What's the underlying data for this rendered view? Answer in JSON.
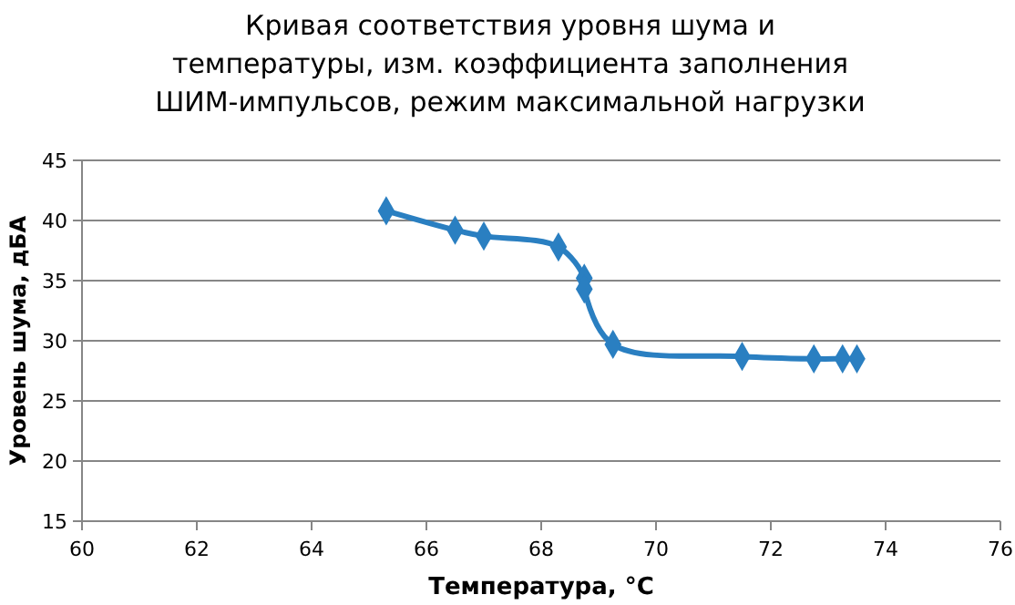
{
  "chart_data": {
    "type": "line",
    "title": "Кривая соответствия уровня шума и температуры, изм. коэффициента  заполнения ШИМ-импульсов, режим максимальной нагрузки",
    "xlabel": "Температура, °C",
    "ylabel": "Уровень шума, дБА",
    "x": [
      65.3,
      66.5,
      67.0,
      68.3,
      68.75,
      68.75,
      69.25,
      71.5,
      72.75,
      73.25,
      73.5
    ],
    "series": [
      {
        "color": "#2a7fc1",
        "values": [
          40.8,
          39.2,
          38.7,
          37.8,
          35.2,
          34.3,
          29.7,
          28.7,
          28.5,
          28.5,
          28.5
        ]
      }
    ],
    "xlim": [
      60,
      76
    ],
    "xticks": [
      60,
      62,
      64,
      66,
      68,
      70,
      72,
      74,
      76
    ],
    "ylim": [
      15,
      45
    ],
    "yticks": [
      15,
      20,
      25,
      30,
      35,
      40,
      45
    ],
    "grid": "y",
    "marker": "diamond",
    "line_style": "solid"
  }
}
